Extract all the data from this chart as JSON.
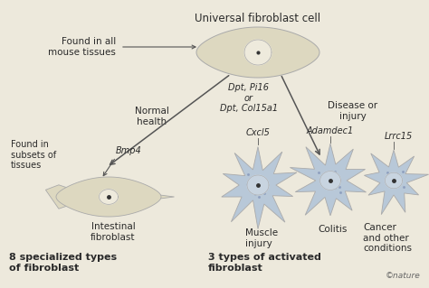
{
  "bg_color": "#ede9dc",
  "title": "Universal fibroblast cell",
  "found_all": "Found in all\nmouse tissues",
  "gene_middle": "Dpt, Pi16\nor\nDpt, Col15a1",
  "normal_health": "Normal\nhealth",
  "disease_injury": "Disease or\ninjury",
  "found_subsets": "Found in\nsubsets of\ntissues",
  "bmp4": "Bmp4",
  "intestinal": "Intestinal\nfibroblast",
  "cxcl5": "Cxcl5",
  "adamdec1": "Adamdec1",
  "lrrc15": "Lrrc15",
  "muscle": "Muscle\ninjury",
  "colitis": "Colitis",
  "cancer": "Cancer\nand other\nconditions",
  "label_left": "8 specialized types\nof fibroblast",
  "label_right": "3 types of activated\nfibroblast",
  "nature_text": "©nature",
  "arrow_color": "#555555",
  "text_color": "#2a2a2a",
  "cell_beige_fill": "#ddd8c0",
  "cell_beige_light": "#eeeadc",
  "cell_blue_fill": "#b8c8d8",
  "cell_blue_light": "#d0dde8",
  "cell_nucleus_dark": "#333333",
  "cell_nucleus_light": "#aaaaaa",
  "cell_edge": "#aaaaaa"
}
